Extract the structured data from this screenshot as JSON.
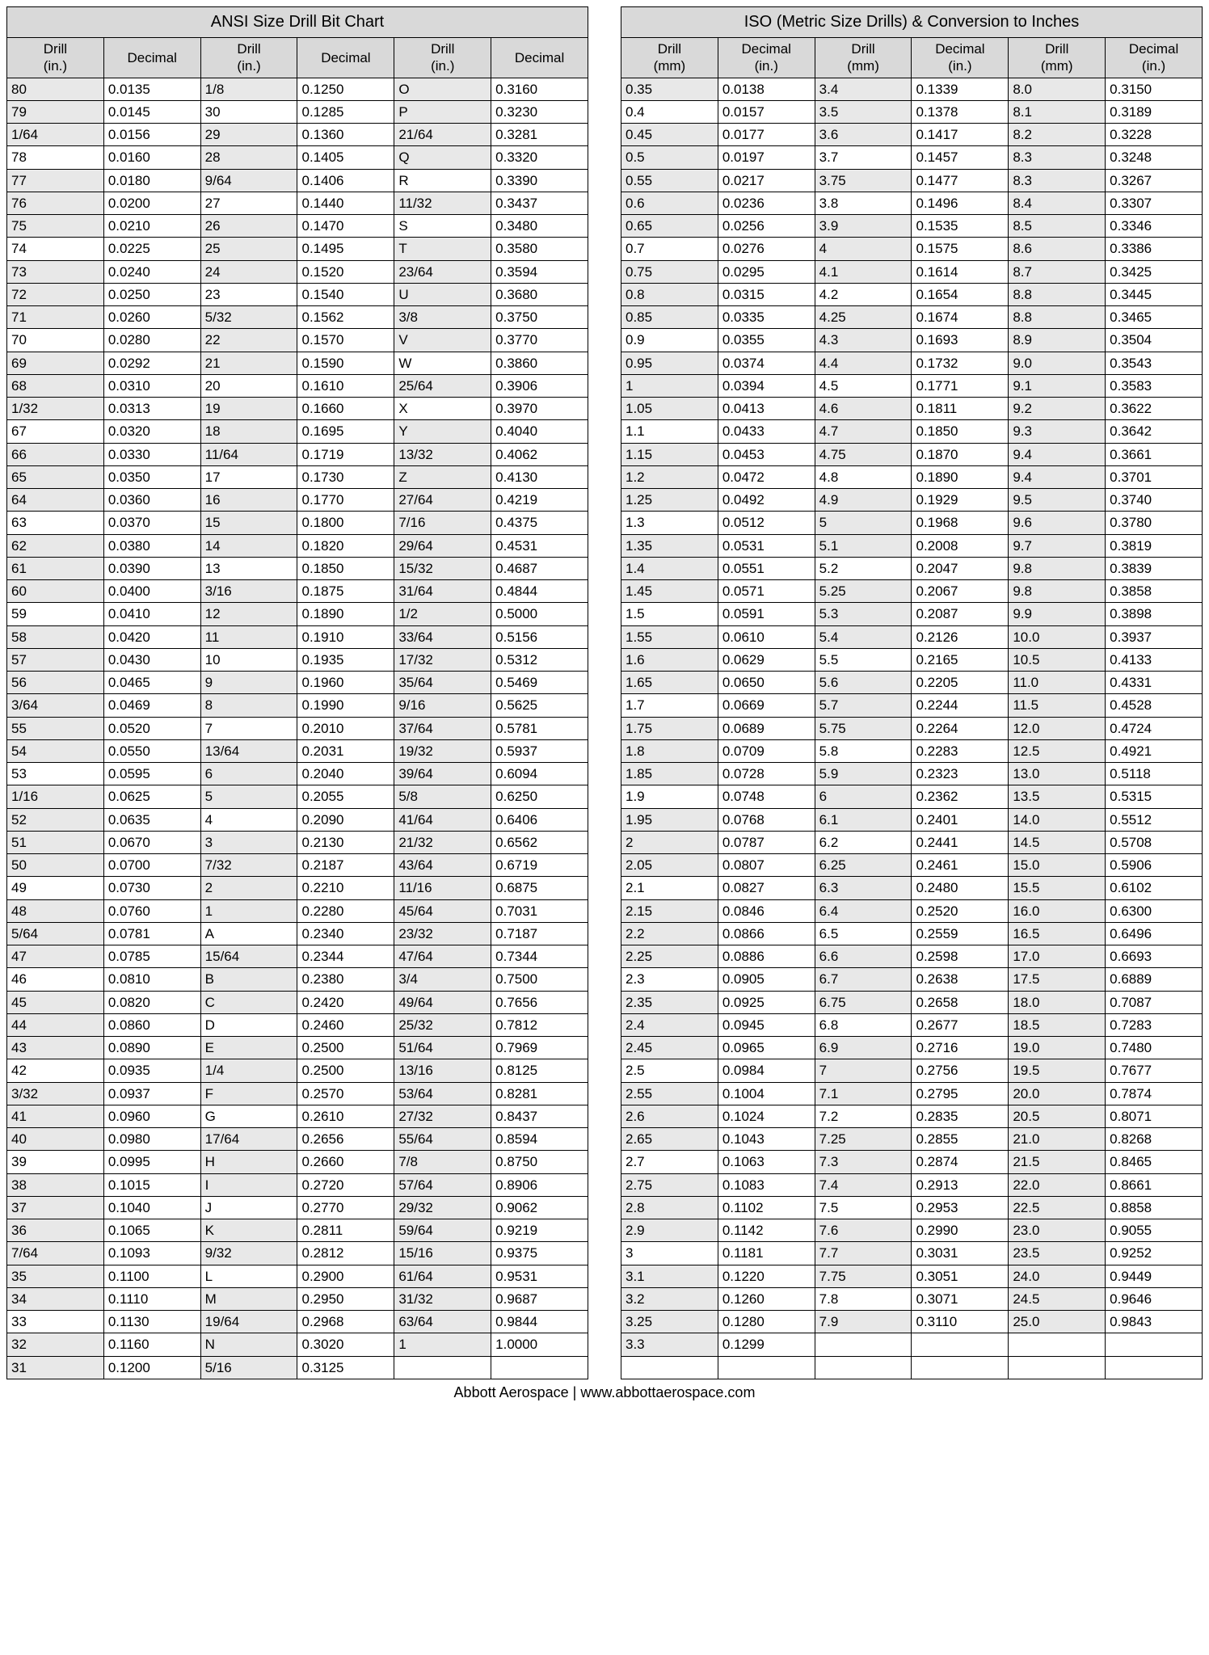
{
  "ansi": {
    "title": "ANSI Size Drill Bit Chart",
    "col_labels": [
      "Drill (in.)",
      "Decimal",
      "Drill (in.)",
      "Decimal",
      "Drill (in.)",
      "Decimal"
    ],
    "rows": [
      [
        "80",
        "0.0135",
        "1/8",
        "0.1250",
        "O",
        "0.3160"
      ],
      [
        "79",
        "0.0145",
        "30",
        "0.1285",
        "P",
        "0.3230"
      ],
      [
        "1/64",
        "0.0156",
        "29",
        "0.1360",
        "21/64",
        "0.3281"
      ],
      [
        "78",
        "0.0160",
        "28",
        "0.1405",
        "Q",
        "0.3320"
      ],
      [
        "77",
        "0.0180",
        "9/64",
        "0.1406",
        "R",
        "0.3390"
      ],
      [
        "76",
        "0.0200",
        "27",
        "0.1440",
        "11/32",
        "0.3437"
      ],
      [
        "75",
        "0.0210",
        "26",
        "0.1470",
        "S",
        "0.3480"
      ],
      [
        "74",
        "0.0225",
        "25",
        "0.1495",
        "T",
        "0.3580"
      ],
      [
        "73",
        "0.0240",
        "24",
        "0.1520",
        "23/64",
        "0.3594"
      ],
      [
        "72",
        "0.0250",
        "23",
        "0.1540",
        "U",
        "0.3680"
      ],
      [
        "71",
        "0.0260",
        "5/32",
        "0.1562",
        "3/8",
        "0.3750"
      ],
      [
        "70",
        "0.0280",
        "22",
        "0.1570",
        "V",
        "0.3770"
      ],
      [
        "69",
        "0.0292",
        "21",
        "0.1590",
        "W",
        "0.3860"
      ],
      [
        "68",
        "0.0310",
        "20",
        "0.1610",
        "25/64",
        "0.3906"
      ],
      [
        "1/32",
        "0.0313",
        "19",
        "0.1660",
        "X",
        "0.3970"
      ],
      [
        "67",
        "0.0320",
        "18",
        "0.1695",
        "Y",
        "0.4040"
      ],
      [
        "66",
        "0.0330",
        "11/64",
        "0.1719",
        "13/32",
        "0.4062"
      ],
      [
        "65",
        "0.0350",
        "17",
        "0.1730",
        "Z",
        "0.4130"
      ],
      [
        "64",
        "0.0360",
        "16",
        "0.1770",
        "27/64",
        "0.4219"
      ],
      [
        "63",
        "0.0370",
        "15",
        "0.1800",
        "7/16",
        "0.4375"
      ],
      [
        "62",
        "0.0380",
        "14",
        "0.1820",
        "29/64",
        "0.4531"
      ],
      [
        "61",
        "0.0390",
        "13",
        "0.1850",
        "15/32",
        "0.4687"
      ],
      [
        "60",
        "0.0400",
        "3/16",
        "0.1875",
        "31/64",
        "0.4844"
      ],
      [
        "59",
        "0.0410",
        "12",
        "0.1890",
        "1/2",
        "0.5000"
      ],
      [
        "58",
        "0.0420",
        "11",
        "0.1910",
        "33/64",
        "0.5156"
      ],
      [
        "57",
        "0.0430",
        "10",
        "0.1935",
        "17/32",
        "0.5312"
      ],
      [
        "56",
        "0.0465",
        "9",
        "0.1960",
        "35/64",
        "0.5469"
      ],
      [
        "3/64",
        "0.0469",
        "8",
        "0.1990",
        "9/16",
        "0.5625"
      ],
      [
        "55",
        "0.0520",
        "7",
        "0.2010",
        "37/64",
        "0.5781"
      ],
      [
        "54",
        "0.0550",
        "13/64",
        "0.2031",
        "19/32",
        "0.5937"
      ],
      [
        "53",
        "0.0595",
        "6",
        "0.2040",
        "39/64",
        "0.6094"
      ],
      [
        "1/16",
        "0.0625",
        "5",
        "0.2055",
        "5/8",
        "0.6250"
      ],
      [
        "52",
        "0.0635",
        "4",
        "0.2090",
        "41/64",
        "0.6406"
      ],
      [
        "51",
        "0.0670",
        "3",
        "0.2130",
        "21/32",
        "0.6562"
      ],
      [
        "50",
        "0.0700",
        "7/32",
        "0.2187",
        "43/64",
        "0.6719"
      ],
      [
        "49",
        "0.0730",
        "2",
        "0.2210",
        "11/16",
        "0.6875"
      ],
      [
        "48",
        "0.0760",
        "1",
        "0.2280",
        "45/64",
        "0.7031"
      ],
      [
        "5/64",
        "0.0781",
        "A",
        "0.2340",
        "23/32",
        "0.7187"
      ],
      [
        "47",
        "0.0785",
        "15/64",
        "0.2344",
        "47/64",
        "0.7344"
      ],
      [
        "46",
        "0.0810",
        "B",
        "0.2380",
        "3/4",
        "0.7500"
      ],
      [
        "45",
        "0.0820",
        "C",
        "0.2420",
        "49/64",
        "0.7656"
      ],
      [
        "44",
        "0.0860",
        "D",
        "0.2460",
        "25/32",
        "0.7812"
      ],
      [
        "43",
        "0.0890",
        "E",
        "0.2500",
        "51/64",
        "0.7969"
      ],
      [
        "42",
        "0.0935",
        "1/4",
        "0.2500",
        "13/16",
        "0.8125"
      ],
      [
        "3/32",
        "0.0937",
        "F",
        "0.2570",
        "53/64",
        "0.8281"
      ],
      [
        "41",
        "0.0960",
        "G",
        "0.2610",
        "27/32",
        "0.8437"
      ],
      [
        "40",
        "0.0980",
        "17/64",
        "0.2656",
        "55/64",
        "0.8594"
      ],
      [
        "39",
        "0.0995",
        "H",
        "0.2660",
        "7/8",
        "0.8750"
      ],
      [
        "38",
        "0.1015",
        "I",
        "0.2720",
        "57/64",
        "0.8906"
      ],
      [
        "37",
        "0.1040",
        "J",
        "0.2770",
        "29/32",
        "0.9062"
      ],
      [
        "36",
        "0.1065",
        "K",
        "0.2811",
        "59/64",
        "0.9219"
      ],
      [
        "7/64",
        "0.1093",
        "9/32",
        "0.2812",
        "15/16",
        "0.9375"
      ],
      [
        "35",
        "0.1100",
        "L",
        "0.2900",
        "61/64",
        "0.9531"
      ],
      [
        "34",
        "0.1110",
        "M",
        "0.2950",
        "31/32",
        "0.9687"
      ],
      [
        "33",
        "0.1130",
        "19/64",
        "0.2968",
        "63/64",
        "0.9844"
      ],
      [
        "32",
        "0.1160",
        "N",
        "0.3020",
        "1",
        "1.0000"
      ],
      [
        "31",
        "0.1200",
        "5/16",
        "0.3125",
        "",
        ""
      ]
    ],
    "shade": {
      "0": [
        0,
        2,
        4
      ],
      "1": [
        0,
        4
      ],
      "2": [
        0,
        2,
        4
      ],
      "3": [
        2,
        4
      ],
      "4": [
        0,
        2
      ],
      "5": [
        0,
        4
      ],
      "6": [
        0,
        2
      ],
      "7": [
        2,
        4
      ],
      "8": [
        0,
        2,
        4
      ],
      "9": [
        0,
        4
      ],
      "10": [
        0,
        2,
        4
      ],
      "11": [
        2,
        4
      ],
      "12": [
        0,
        2
      ],
      "13": [
        0,
        4
      ],
      "14": [
        0,
        2
      ],
      "15": [
        2,
        4
      ],
      "16": [
        0,
        2,
        4
      ],
      "17": [
        0,
        4
      ],
      "18": [
        0,
        2,
        4
      ],
      "19": [
        2,
        4
      ],
      "20": [
        0,
        2,
        4
      ],
      "21": [
        0,
        4
      ],
      "22": [
        0,
        2,
        4
      ],
      "23": [
        2,
        4
      ],
      "24": [
        0,
        2,
        4
      ],
      "25": [
        0,
        4
      ],
      "26": [
        0,
        2,
        4
      ],
      "27": [
        0,
        2,
        4
      ],
      "28": [
        0,
        4
      ],
      "29": [
        0,
        2,
        4
      ],
      "30": [
        2,
        4
      ],
      "31": [
        0,
        2,
        4
      ],
      "32": [
        0,
        4
      ],
      "33": [
        0,
        2,
        4
      ],
      "34": [
        0,
        2,
        4
      ],
      "35": [
        2,
        4
      ],
      "36": [
        0,
        2,
        4
      ],
      "37": [
        0,
        4
      ],
      "38": [
        0,
        2,
        4
      ],
      "39": [
        2,
        4
      ],
      "40": [
        0,
        2,
        4
      ],
      "41": [
        0,
        4
      ],
      "42": [
        0,
        2,
        4
      ],
      "43": [
        2,
        4
      ],
      "44": [
        0,
        2,
        4
      ],
      "45": [
        0,
        4
      ],
      "46": [
        0,
        2,
        4
      ],
      "47": [
        2,
        4
      ],
      "48": [
        0,
        2,
        4
      ],
      "49": [
        0,
        4
      ],
      "50": [
        0,
        2,
        4
      ],
      "51": [
        0,
        2,
        4
      ],
      "52": [
        0,
        4
      ],
      "53": [
        0,
        2,
        4
      ],
      "54": [
        2,
        4
      ],
      "55": [
        0,
        2,
        4
      ],
      "56": [
        0,
        2
      ]
    }
  },
  "iso": {
    "title": "ISO (Metric Size Drills) & Conversion to Inches",
    "col_labels": [
      "Drill (mm)",
      "Decimal (in.)",
      "Drill (mm)",
      "Decimal (in.)",
      "Drill (mm)",
      "Decimal (in.)"
    ],
    "rows": [
      [
        "0.35",
        "0.0138",
        "3.4",
        "0.1339",
        "8.0",
        "0.3150"
      ],
      [
        "0.4",
        "0.0157",
        "3.5",
        "0.1378",
        "8.1",
        "0.3189"
      ],
      [
        "0.45",
        "0.0177",
        "3.6",
        "0.1417",
        "8.2",
        "0.3228"
      ],
      [
        "0.5",
        "0.0197",
        "3.7",
        "0.1457",
        "8.3",
        "0.3248"
      ],
      [
        "0.55",
        "0.0217",
        "3.75",
        "0.1477",
        "8.3",
        "0.3267"
      ],
      [
        "0.6",
        "0.0236",
        "3.8",
        "0.1496",
        "8.4",
        "0.3307"
      ],
      [
        "0.65",
        "0.0256",
        "3.9",
        "0.1535",
        "8.5",
        "0.3346"
      ],
      [
        "0.7",
        "0.0276",
        "4",
        "0.1575",
        "8.6",
        "0.3386"
      ],
      [
        "0.75",
        "0.0295",
        "4.1",
        "0.1614",
        "8.7",
        "0.3425"
      ],
      [
        "0.8",
        "0.0315",
        "4.2",
        "0.1654",
        "8.8",
        "0.3445"
      ],
      [
        "0.85",
        "0.0335",
        "4.25",
        "0.1674",
        "8.8",
        "0.3465"
      ],
      [
        "0.9",
        "0.0355",
        "4.3",
        "0.1693",
        "8.9",
        "0.3504"
      ],
      [
        "0.95",
        "0.0374",
        "4.4",
        "0.1732",
        "9.0",
        "0.3543"
      ],
      [
        "1",
        "0.0394",
        "4.5",
        "0.1771",
        "9.1",
        "0.3583"
      ],
      [
        "1.05",
        "0.0413",
        "4.6",
        "0.1811",
        "9.2",
        "0.3622"
      ],
      [
        "1.1",
        "0.0433",
        "4.7",
        "0.1850",
        "9.3",
        "0.3642"
      ],
      [
        "1.15",
        "0.0453",
        "4.75",
        "0.1870",
        "9.4",
        "0.3661"
      ],
      [
        "1.2",
        "0.0472",
        "4.8",
        "0.1890",
        "9.4",
        "0.3701"
      ],
      [
        "1.25",
        "0.0492",
        "4.9",
        "0.1929",
        "9.5",
        "0.3740"
      ],
      [
        "1.3",
        "0.0512",
        "5",
        "0.1968",
        "9.6",
        "0.3780"
      ],
      [
        "1.35",
        "0.0531",
        "5.1",
        "0.2008",
        "9.7",
        "0.3819"
      ],
      [
        "1.4",
        "0.0551",
        "5.2",
        "0.2047",
        "9.8",
        "0.3839"
      ],
      [
        "1.45",
        "0.0571",
        "5.25",
        "0.2067",
        "9.8",
        "0.3858"
      ],
      [
        "1.5",
        "0.0591",
        "5.3",
        "0.2087",
        "9.9",
        "0.3898"
      ],
      [
        "1.55",
        "0.0610",
        "5.4",
        "0.2126",
        "10.0",
        "0.3937"
      ],
      [
        "1.6",
        "0.0629",
        "5.5",
        "0.2165",
        "10.5",
        "0.4133"
      ],
      [
        "1.65",
        "0.0650",
        "5.6",
        "0.2205",
        "11.0",
        "0.4331"
      ],
      [
        "1.7",
        "0.0669",
        "5.7",
        "0.2244",
        "11.5",
        "0.4528"
      ],
      [
        "1.75",
        "0.0689",
        "5.75",
        "0.2264",
        "12.0",
        "0.4724"
      ],
      [
        "1.8",
        "0.0709",
        "5.8",
        "0.2283",
        "12.5",
        "0.4921"
      ],
      [
        "1.85",
        "0.0728",
        "5.9",
        "0.2323",
        "13.0",
        "0.5118"
      ],
      [
        "1.9",
        "0.0748",
        "6",
        "0.2362",
        "13.5",
        "0.5315"
      ],
      [
        "1.95",
        "0.0768",
        "6.1",
        "0.2401",
        "14.0",
        "0.5512"
      ],
      [
        "2",
        "0.0787",
        "6.2",
        "0.2441",
        "14.5",
        "0.5708"
      ],
      [
        "2.05",
        "0.0807",
        "6.25",
        "0.2461",
        "15.0",
        "0.5906"
      ],
      [
        "2.1",
        "0.0827",
        "6.3",
        "0.2480",
        "15.5",
        "0.6102"
      ],
      [
        "2.15",
        "0.0846",
        "6.4",
        "0.2520",
        "16.0",
        "0.6300"
      ],
      [
        "2.2",
        "0.0866",
        "6.5",
        "0.2559",
        "16.5",
        "0.6496"
      ],
      [
        "2.25",
        "0.0886",
        "6.6",
        "0.2598",
        "17.0",
        "0.6693"
      ],
      [
        "2.3",
        "0.0905",
        "6.7",
        "0.2638",
        "17.5",
        "0.6889"
      ],
      [
        "2.35",
        "0.0925",
        "6.75",
        "0.2658",
        "18.0",
        "0.7087"
      ],
      [
        "2.4",
        "0.0945",
        "6.8",
        "0.2677",
        "18.5",
        "0.7283"
      ],
      [
        "2.45",
        "0.0965",
        "6.9",
        "0.2716",
        "19.0",
        "0.7480"
      ],
      [
        "2.5",
        "0.0984",
        "7",
        "0.2756",
        "19.5",
        "0.7677"
      ],
      [
        "2.55",
        "0.1004",
        "7.1",
        "0.2795",
        "20.0",
        "0.7874"
      ],
      [
        "2.6",
        "0.1024",
        "7.2",
        "0.2835",
        "20.5",
        "0.8071"
      ],
      [
        "2.65",
        "0.1043",
        "7.25",
        "0.2855",
        "21.0",
        "0.8268"
      ],
      [
        "2.7",
        "0.1063",
        "7.3",
        "0.2874",
        "21.5",
        "0.8465"
      ],
      [
        "2.75",
        "0.1083",
        "7.4",
        "0.2913",
        "22.0",
        "0.8661"
      ],
      [
        "2.8",
        "0.1102",
        "7.5",
        "0.2953",
        "22.5",
        "0.8858"
      ],
      [
        "2.9",
        "0.1142",
        "7.6",
        "0.2990",
        "23.0",
        "0.9055"
      ],
      [
        "3",
        "0.1181",
        "7.7",
        "0.3031",
        "23.5",
        "0.9252"
      ],
      [
        "3.1",
        "0.1220",
        "7.75",
        "0.3051",
        "24.0",
        "0.9449"
      ],
      [
        "3.2",
        "0.1260",
        "7.8",
        "0.3071",
        "24.5",
        "0.9646"
      ],
      [
        "3.25",
        "0.1280",
        "7.9",
        "0.3110",
        "25.0",
        "0.9843"
      ],
      [
        "3.3",
        "0.1299",
        "",
        "",
        "",
        ""
      ],
      [
        "",
        "",
        "",
        "",
        "",
        ""
      ]
    ],
    "shade": {
      "0": [
        0,
        2,
        4
      ],
      "1": [
        2,
        4
      ],
      "2": [
        0,
        2,
        4
      ],
      "3": [
        0,
        4
      ],
      "4": [
        0,
        2,
        4
      ],
      "5": [
        0,
        4
      ],
      "6": [
        0,
        2,
        4
      ],
      "7": [
        2,
        4
      ],
      "8": [
        0,
        2,
        4
      ],
      "9": [
        0,
        4
      ],
      "10": [
        0,
        2,
        4
      ],
      "11": [
        2,
        4
      ],
      "12": [
        0,
        2,
        4
      ],
      "13": [
        0,
        4
      ],
      "14": [
        0,
        2,
        4
      ],
      "15": [
        2,
        4
      ],
      "16": [
        0,
        2,
        4
      ],
      "17": [
        0,
        4
      ],
      "18": [
        0,
        2,
        4
      ],
      "19": [
        2,
        4
      ],
      "20": [
        0,
        2,
        4
      ],
      "21": [
        0,
        4
      ],
      "22": [
        0,
        2,
        4
      ],
      "23": [
        2,
        4
      ],
      "24": [
        0,
        2,
        4
      ],
      "25": [
        0,
        4
      ],
      "26": [
        0,
        2,
        4
      ],
      "27": [
        2,
        4
      ],
      "28": [
        0,
        2,
        4
      ],
      "29": [
        0,
        4
      ],
      "30": [
        0,
        2,
        4
      ],
      "31": [
        2,
        4
      ],
      "32": [
        0,
        2,
        4
      ],
      "33": [
        0,
        4
      ],
      "34": [
        0,
        2,
        4
      ],
      "35": [
        2,
        4
      ],
      "36": [
        0,
        2,
        4
      ],
      "37": [
        0,
        4
      ],
      "38": [
        0,
        2,
        4
      ],
      "39": [
        2,
        4
      ],
      "40": [
        0,
        2,
        4
      ],
      "41": [
        0,
        4
      ],
      "42": [
        0,
        2,
        4
      ],
      "43": [
        2,
        4
      ],
      "44": [
        0,
        2,
        4
      ],
      "45": [
        0,
        4
      ],
      "46": [
        0,
        2,
        4
      ],
      "47": [
        2,
        4
      ],
      "48": [
        0,
        2,
        4
      ],
      "49": [
        0,
        4
      ],
      "50": [
        0,
        2,
        4
      ],
      "51": [
        2,
        4
      ],
      "52": [
        0,
        2,
        4
      ],
      "53": [
        0,
        4
      ],
      "54": [
        0,
        2,
        4
      ],
      "55": [
        0
      ]
    }
  },
  "footer": "Abbott Aerospace | www.abbottaerospace.com",
  "colors": {
    "header_bg": "#d9d9d9",
    "shade_bg": "#e8e8e8",
    "border": "#000000"
  }
}
